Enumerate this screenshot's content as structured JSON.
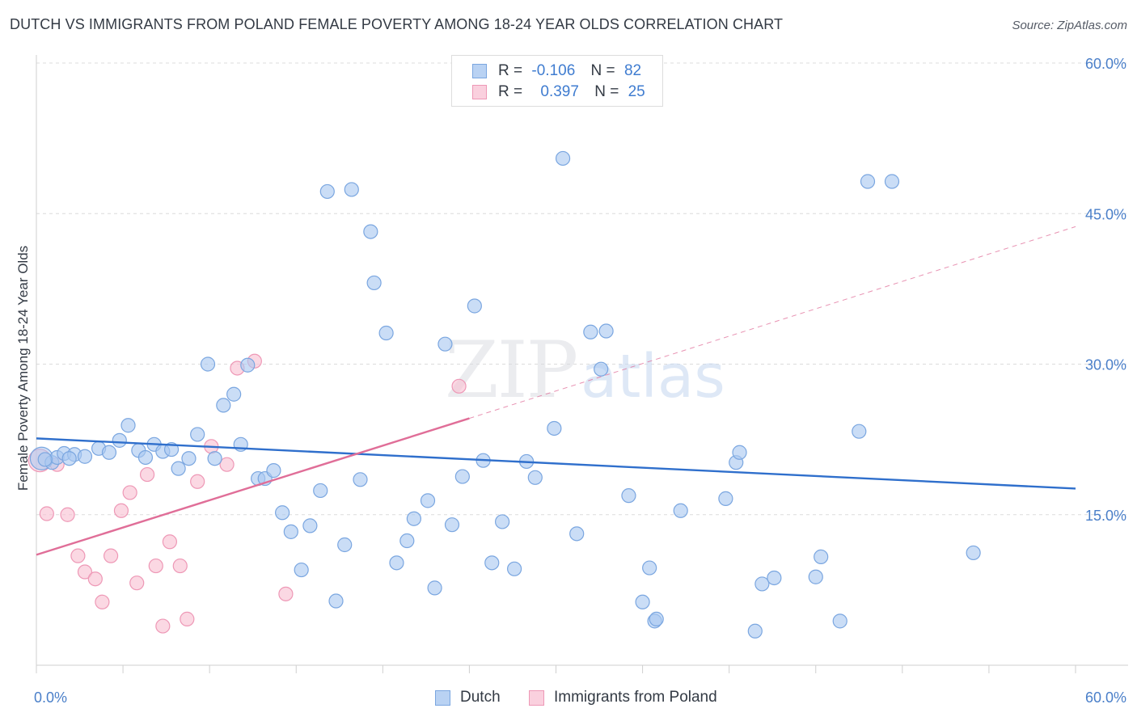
{
  "title": "DUTCH VS IMMIGRANTS FROM POLAND FEMALE POVERTY AMONG 18-24 YEAR OLDS CORRELATION CHART",
  "source": "Source: ZipAtlas.com",
  "watermark": {
    "zip": "ZIP",
    "atlas": "atlas"
  },
  "legend_top": {
    "rows": [
      {
        "r_label": "R =",
        "r_value": "-0.106",
        "n_label": "N =",
        "n_value": "82"
      },
      {
        "r_label": "R =",
        "r_value": "0.397",
        "n_label": "N =",
        "n_value": "25"
      }
    ]
  },
  "legend_bottom": [
    "Dutch",
    "Immigrants from Poland"
  ],
  "colors": {
    "dutch_fill": "#aac8f0",
    "dutch_stroke": "#7aa6e0",
    "dutch_line": "#2f6fcc",
    "poland_fill": "#f8c0d2",
    "poland_stroke": "#ee98b6",
    "poland_line": "#e06e98",
    "tick_label": "#4a7fc9",
    "grid": "#dcdcdc"
  },
  "chart_data": {
    "type": "scatter",
    "title": "DUTCH VS IMMIGRANTS FROM POLAND FEMALE POVERTY AMONG 18-24 YEAR OLDS CORRELATION CHART",
    "xlabel": "",
    "ylabel": "Female Poverty Among 18-24 Year Olds",
    "xlim": [
      0,
      60
    ],
    "ylim": [
      0,
      60
    ],
    "x_tick_labels": [
      "0.0%",
      "60.0%"
    ],
    "y_ticks": [
      15,
      30,
      45,
      60
    ],
    "y_tick_labels": [
      "15.0%",
      "30.0%",
      "45.0%",
      "60.0%"
    ],
    "grid": true,
    "legend": "top-center and bottom",
    "series": [
      {
        "name": "Dutch",
        "R": -0.106,
        "N": 82,
        "trend": {
          "x": [
            0,
            60
          ],
          "y": [
            22.6,
            17.6
          ],
          "style": "solid"
        },
        "points": [
          [
            0.3,
            20.6
          ],
          [
            0.9,
            20.2
          ],
          [
            1.2,
            20.7
          ],
          [
            1.6,
            21.1
          ],
          [
            2.2,
            21.0
          ],
          [
            2.8,
            20.8
          ],
          [
            3.6,
            21.6
          ],
          [
            4.2,
            21.2
          ],
          [
            4.8,
            22.4
          ],
          [
            5.3,
            23.9
          ],
          [
            5.9,
            21.4
          ],
          [
            6.3,
            20.7
          ],
          [
            6.8,
            22.0
          ],
          [
            7.3,
            21.3
          ],
          [
            7.8,
            21.5
          ],
          [
            8.2,
            19.6
          ],
          [
            8.8,
            20.6
          ],
          [
            9.3,
            23.0
          ],
          [
            9.9,
            30.0
          ],
          [
            10.3,
            20.6
          ],
          [
            10.8,
            25.9
          ],
          [
            11.4,
            27.0
          ],
          [
            11.8,
            22.0
          ],
          [
            12.2,
            29.9
          ],
          [
            12.8,
            18.6
          ],
          [
            13.2,
            18.6
          ],
          [
            13.7,
            19.4
          ],
          [
            14.2,
            15.2
          ],
          [
            14.7,
            13.3
          ],
          [
            15.3,
            9.5
          ],
          [
            15.8,
            13.9
          ],
          [
            16.4,
            17.4
          ],
          [
            16.8,
            47.2
          ],
          [
            17.3,
            6.4
          ],
          [
            17.8,
            12.0
          ],
          [
            18.2,
            47.4
          ],
          [
            18.7,
            18.5
          ],
          [
            19.3,
            43.2
          ],
          [
            19.5,
            38.1
          ],
          [
            20.2,
            33.1
          ],
          [
            20.8,
            10.2
          ],
          [
            21.4,
            12.4
          ],
          [
            21.8,
            14.6
          ],
          [
            22.6,
            16.4
          ],
          [
            23.0,
            7.7
          ],
          [
            23.6,
            32.0
          ],
          [
            24.0,
            14.0
          ],
          [
            24.6,
            18.8
          ],
          [
            25.3,
            35.8
          ],
          [
            25.8,
            20.4
          ],
          [
            26.3,
            10.2
          ],
          [
            26.9,
            14.3
          ],
          [
            27.6,
            9.6
          ],
          [
            28.3,
            20.3
          ],
          [
            28.8,
            18.7
          ],
          [
            29.9,
            23.6
          ],
          [
            30.4,
            50.5
          ],
          [
            31.2,
            13.1
          ],
          [
            32.0,
            33.2
          ],
          [
            32.6,
            29.5
          ],
          [
            32.9,
            33.3
          ],
          [
            34.2,
            16.9
          ],
          [
            35.0,
            6.3
          ],
          [
            35.4,
            9.7
          ],
          [
            35.7,
            4.4
          ],
          [
            35.8,
            4.6
          ],
          [
            37.2,
            15.4
          ],
          [
            39.8,
            16.6
          ],
          [
            40.4,
            20.2
          ],
          [
            40.6,
            21.2
          ],
          [
            41.5,
            3.4
          ],
          [
            41.9,
            8.1
          ],
          [
            42.6,
            8.7
          ],
          [
            45.0,
            8.8
          ],
          [
            45.3,
            10.8
          ],
          [
            46.4,
            4.4
          ],
          [
            47.5,
            23.3
          ],
          [
            48.0,
            48.2
          ],
          [
            49.4,
            48.2
          ],
          [
            54.1,
            11.2
          ],
          [
            0.5,
            20.5
          ],
          [
            1.9,
            20.6
          ]
        ]
      },
      {
        "name": "Immigrants from Poland",
        "R": 0.397,
        "N": 25,
        "trend": {
          "x": [
            0,
            25
          ],
          "y": [
            11.0,
            24.6
          ],
          "style": "solid",
          "extended": {
            "x": [
              25,
              60
            ],
            "y": [
              24.6,
              43.7
            ],
            "style": "dashed"
          }
        },
        "points": [
          [
            0.2,
            20.4
          ],
          [
            0.6,
            15.1
          ],
          [
            1.2,
            20.0
          ],
          [
            1.8,
            15.0
          ],
          [
            2.4,
            10.9
          ],
          [
            2.8,
            9.3
          ],
          [
            3.4,
            8.6
          ],
          [
            3.8,
            6.3
          ],
          [
            4.3,
            10.9
          ],
          [
            4.9,
            15.4
          ],
          [
            5.4,
            17.2
          ],
          [
            5.8,
            8.2
          ],
          [
            6.4,
            19.0
          ],
          [
            6.9,
            9.9
          ],
          [
            7.3,
            3.9
          ],
          [
            7.7,
            12.3
          ],
          [
            8.3,
            9.9
          ],
          [
            8.7,
            4.6
          ],
          [
            9.3,
            18.3
          ],
          [
            10.1,
            21.8
          ],
          [
            11.0,
            20.0
          ],
          [
            11.6,
            29.6
          ],
          [
            12.6,
            30.3
          ],
          [
            14.4,
            7.1
          ],
          [
            24.4,
            27.8
          ]
        ]
      }
    ]
  }
}
